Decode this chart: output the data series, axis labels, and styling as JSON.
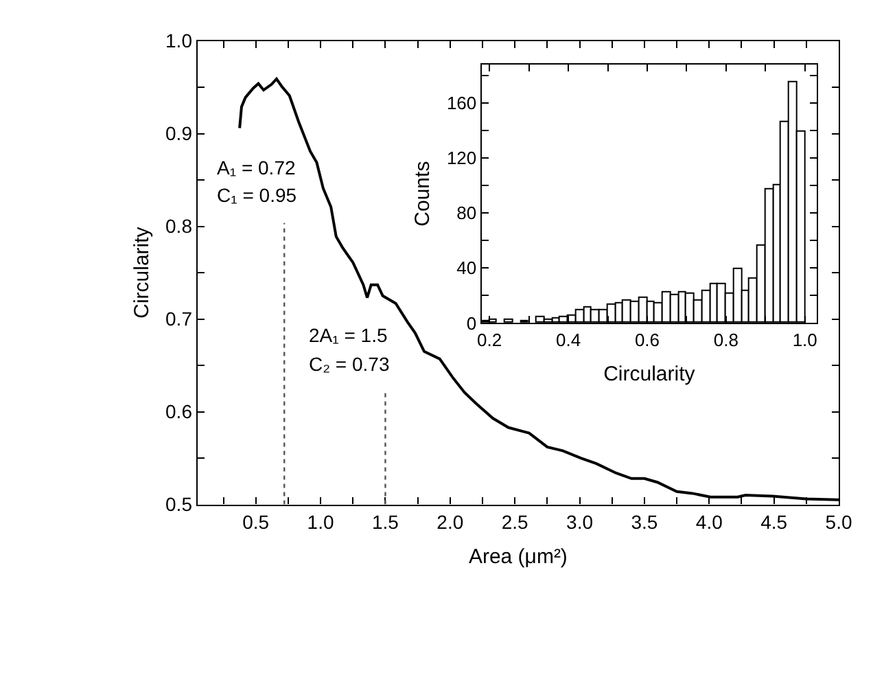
{
  "chart_data": [
    {
      "type": "line",
      "xlabel": "Area (μm²)",
      "ylabel": "Circularity",
      "x": [
        0.375,
        0.39,
        0.42,
        0.48,
        0.52,
        0.56,
        0.62,
        0.66,
        0.7,
        0.76,
        0.83,
        0.92,
        0.97,
        1.02,
        1.08,
        1.12,
        1.17,
        1.25,
        1.33,
        1.36,
        1.39,
        1.44,
        1.48,
        1.58,
        1.67,
        1.73,
        1.8,
        1.92,
        2.02,
        2.11,
        2.2,
        2.33,
        2.45,
        2.61,
        2.75,
        2.87,
        3.01,
        3.13,
        3.28,
        3.4,
        3.5,
        3.6,
        3.75,
        3.87,
        4.01,
        4.22,
        4.28,
        4.49,
        4.75,
        5.0
      ],
      "series": [
        {
          "color": "#000000",
          "values": [
            0.906,
            0.929,
            0.939,
            0.949,
            0.954,
            0.947,
            0.953,
            0.959,
            0.951,
            0.941,
            0.913,
            0.881,
            0.869,
            0.841,
            0.821,
            0.789,
            0.777,
            0.761,
            0.737,
            0.723,
            0.737,
            0.737,
            0.725,
            0.717,
            0.697,
            0.685,
            0.665,
            0.657,
            0.637,
            0.621,
            0.609,
            0.593,
            0.583,
            0.577,
            0.562,
            0.558,
            0.55,
            0.544,
            0.534,
            0.528,
            0.528,
            0.524,
            0.514,
            0.512,
            0.508,
            0.508,
            0.51,
            0.509,
            0.506,
            0.505
          ]
        }
      ],
      "xlim": [
        0.05,
        5.0
      ],
      "xticks": [
        {
          "value": 0.25,
          "label": null
        },
        0.5,
        {
          "value": 0.75,
          "label": null
        },
        {
          "value": 1,
          "label": "1.0"
        },
        {
          "value": 1.25,
          "label": null
        },
        1.5,
        {
          "value": 1.75,
          "label": null
        },
        {
          "value": 2,
          "label": "2.0"
        },
        {
          "value": 2.25,
          "label": null
        },
        2.5,
        {
          "value": 2.75,
          "label": null
        },
        {
          "value": 3,
          "label": "3.0"
        },
        {
          "value": 3.25,
          "label": null
        },
        3.5,
        {
          "value": 3.75,
          "label": null
        },
        {
          "value": 4,
          "label": "4.0"
        },
        {
          "value": 4.25,
          "label": null
        },
        4.5,
        {
          "value": 4.75,
          "label": null
        },
        {
          "value": 5,
          "label": "5.0"
        }
      ],
      "ylim": [
        0.5,
        1.0
      ],
      "yticks": [
        0.5,
        {
          "value": 0.55,
          "label": null
        },
        0.6,
        {
          "value": 0.65,
          "label": null
        },
        0.7,
        {
          "value": 0.75,
          "label": null
        },
        0.8,
        {
          "value": 0.85,
          "label": null
        },
        0.9,
        {
          "value": 0.95,
          "label": null
        },
        {
          "value": 1,
          "label": "1.0"
        }
      ],
      "ref_lines": [
        {
          "axis": "x",
          "value": 0.72,
          "color": "#555555",
          "line_style": "dotted"
        },
        {
          "axis": "x",
          "value": 1.5,
          "color": "#555555",
          "line_style": "dotted"
        }
      ],
      "annotations": [
        "A₁ = 0.72",
        "C₁ = 0.95",
        "2A₁ = 1.5",
        "C₂ = 0.73"
      ],
      "marker": "none",
      "line_style": "solid"
    },
    {
      "type": "histogram",
      "xlabel": "Circularity",
      "ylabel": "Counts",
      "color": "#ffffff",
      "bins": [
        0.18,
        0.2,
        0.22,
        0.24,
        0.26,
        0.28,
        0.3,
        0.32,
        0.34,
        0.36,
        0.38,
        0.4,
        0.42,
        0.44,
        0.46,
        0.48,
        0.5,
        0.52,
        0.54,
        0.56,
        0.58,
        0.6,
        0.62,
        0.64,
        0.66,
        0.68,
        0.7,
        0.72,
        0.74,
        0.76,
        0.78,
        0.8,
        0.82,
        0.84,
        0.86,
        0.88,
        0.9,
        0.92,
        0.94,
        0.96,
        0.98,
        1.0
      ],
      "values": [
        1,
        2,
        0,
        2,
        0,
        1,
        0,
        4,
        2,
        3,
        4,
        5,
        9,
        11,
        9,
        9,
        13,
        14,
        16,
        15,
        18,
        15,
        14,
        22,
        20,
        22,
        21,
        16,
        23,
        28,
        28,
        21,
        39,
        23,
        32,
        56,
        97,
        100,
        146,
        175,
        139
      ],
      "xlim": [
        0.18,
        1.03
      ],
      "xticks": [
        0.2,
        {
          "value": 0.3,
          "label": null
        },
        0.4,
        {
          "value": 0.5,
          "label": null
        },
        0.6,
        {
          "value": 0.7,
          "label": null
        },
        0.8,
        {
          "value": 0.9,
          "label": null
        },
        {
          "value": 1,
          "label": "1.0"
        }
      ],
      "ylim": [
        0,
        188
      ],
      "yticks": [
        0,
        {
          "value": 20,
          "label": null
        },
        40,
        {
          "value": 60,
          "label": null
        },
        80,
        {
          "value": 100,
          "label": null
        },
        120,
        {
          "value": 140,
          "label": null
        },
        160,
        {
          "value": 180,
          "label": null
        }
      ]
    }
  ]
}
